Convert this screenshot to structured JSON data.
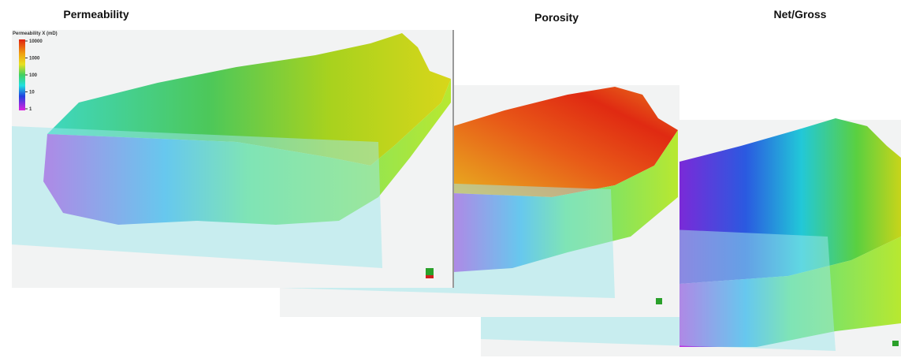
{
  "panels": [
    {
      "label": "Permeability"
    },
    {
      "label": "Porosity"
    },
    {
      "label": "Net/Gross"
    }
  ],
  "legend": {
    "title": "Permeability X (mD)",
    "ticks": [
      "10000",
      "1000",
      "100",
      "10",
      "1"
    ]
  }
}
